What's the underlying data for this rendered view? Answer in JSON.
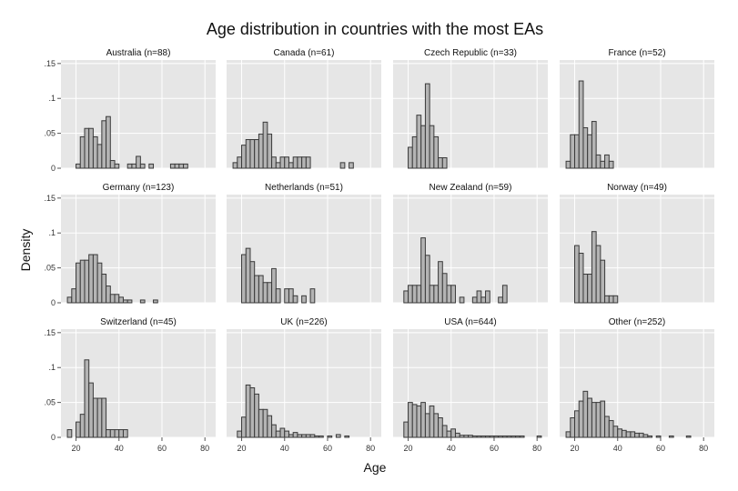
{
  "chart_data": {
    "type": "bar",
    "title": "Age distribution in countries with the most EAs",
    "xlabel": "Age",
    "ylabel": "Density",
    "bin_width": 2,
    "xlim": [
      13,
      85
    ],
    "ylim": [
      0,
      0.155
    ],
    "x_ticks": [
      20,
      40,
      60,
      80
    ],
    "x_tick_labels": [
      "20",
      "40",
      "60",
      "80"
    ],
    "y_ticks": [
      0,
      0.05,
      0.1,
      0.15
    ],
    "y_tick_labels": [
      "0",
      ".05",
      ".1",
      ".15"
    ],
    "grid": true,
    "panels": [
      {
        "label": "Australia (n=88)",
        "x": [
          21,
          23,
          25,
          27,
          29,
          31,
          33,
          35,
          37,
          39,
          45,
          47,
          49,
          51,
          55,
          65,
          67,
          69,
          71
        ],
        "y": [
          0.006,
          0.045,
          0.057,
          0.057,
          0.045,
          0.034,
          0.068,
          0.074,
          0.011,
          0.006,
          0.006,
          0.006,
          0.017,
          0.006,
          0.006,
          0.006,
          0.006,
          0.006,
          0.006
        ]
      },
      {
        "label": "Canada (n=61)",
        "x": [
          17,
          19,
          21,
          23,
          25,
          27,
          29,
          31,
          33,
          35,
          37,
          39,
          41,
          43,
          45,
          47,
          49,
          51,
          67,
          71
        ],
        "y": [
          0.008,
          0.016,
          0.033,
          0.041,
          0.041,
          0.041,
          0.049,
          0.066,
          0.049,
          0.016,
          0.008,
          0.016,
          0.016,
          0.008,
          0.016,
          0.016,
          0.016,
          0.016,
          0.008,
          0.008
        ]
      },
      {
        "label": "Czech Republic (n=33)",
        "x": [
          21,
          23,
          25,
          27,
          29,
          31,
          33,
          35,
          37
        ],
        "y": [
          0.03,
          0.045,
          0.076,
          0.061,
          0.121,
          0.061,
          0.045,
          0.015,
          0.015
        ]
      },
      {
        "label": "France (n=52)",
        "x": [
          17,
          19,
          21,
          23,
          25,
          27,
          29,
          31,
          33,
          35,
          37
        ],
        "y": [
          0.01,
          0.048,
          0.048,
          0.125,
          0.058,
          0.048,
          0.067,
          0.019,
          0.01,
          0.019,
          0.01
        ]
      },
      {
        "label": "Germany (n=123)",
        "x": [
          17,
          19,
          21,
          23,
          25,
          27,
          29,
          31,
          33,
          35,
          37,
          39,
          41,
          43,
          45,
          51,
          57
        ],
        "y": [
          0.008,
          0.02,
          0.057,
          0.061,
          0.061,
          0.069,
          0.069,
          0.057,
          0.041,
          0.024,
          0.012,
          0.012,
          0.008,
          0.004,
          0.004,
          0.004,
          0.004
        ]
      },
      {
        "label": "Netherlands (n=51)",
        "x": [
          21,
          23,
          25,
          27,
          29,
          31,
          33,
          35,
          37,
          41,
          43,
          45,
          49,
          53
        ],
        "y": [
          0.069,
          0.078,
          0.059,
          0.039,
          0.039,
          0.029,
          0.029,
          0.049,
          0.02,
          0.02,
          0.02,
          0.01,
          0.01,
          0.02
        ]
      },
      {
        "label": "New Zealand (n=59)",
        "x": [
          19,
          21,
          23,
          25,
          27,
          29,
          31,
          33,
          35,
          37,
          39,
          41,
          45,
          51,
          53,
          55,
          57,
          63,
          65
        ],
        "y": [
          0.017,
          0.025,
          0.025,
          0.025,
          0.093,
          0.068,
          0.025,
          0.025,
          0.059,
          0.042,
          0.025,
          0.025,
          0.008,
          0.008,
          0.017,
          0.008,
          0.017,
          0.008,
          0.025
        ]
      },
      {
        "label": "Norway (n=49)",
        "x": [
          21,
          23,
          25,
          27,
          29,
          31,
          33,
          35,
          37,
          39
        ],
        "y": [
          0.082,
          0.071,
          0.041,
          0.041,
          0.102,
          0.082,
          0.061,
          0.01,
          0.01,
          0.01
        ]
      },
      {
        "label": "Switzerland (n=45)",
        "x": [
          17,
          21,
          23,
          25,
          27,
          29,
          31,
          33,
          35,
          37,
          39,
          41,
          43
        ],
        "y": [
          0.011,
          0.022,
          0.033,
          0.111,
          0.078,
          0.056,
          0.056,
          0.056,
          0.011,
          0.011,
          0.011,
          0.011,
          0.011
        ]
      },
      {
        "label": "UK (n=226)",
        "x": [
          19,
          21,
          23,
          25,
          27,
          29,
          31,
          33,
          35,
          37,
          39,
          41,
          43,
          45,
          47,
          49,
          51,
          53,
          55,
          57,
          61,
          65,
          69
        ],
        "y": [
          0.009,
          0.029,
          0.075,
          0.071,
          0.062,
          0.04,
          0.04,
          0.031,
          0.018,
          0.009,
          0.013,
          0.009,
          0.004,
          0.007,
          0.004,
          0.004,
          0.004,
          0.004,
          0.002,
          0.002,
          0.002,
          0.004,
          0.002
        ]
      },
      {
        "label": "USA (n=644)",
        "x": [
          19,
          21,
          23,
          25,
          27,
          29,
          31,
          33,
          35,
          37,
          39,
          41,
          43,
          45,
          47,
          49,
          51,
          53,
          55,
          57,
          59,
          61,
          63,
          65,
          67,
          69,
          71,
          73,
          81
        ],
        "y": [
          0.022,
          0.05,
          0.047,
          0.045,
          0.05,
          0.034,
          0.045,
          0.034,
          0.028,
          0.017,
          0.009,
          0.012,
          0.006,
          0.003,
          0.003,
          0.003,
          0.002,
          0.002,
          0.002,
          0.002,
          0.002,
          0.002,
          0.002,
          0.002,
          0.002,
          0.002,
          0.002,
          0.002,
          0.002
        ]
      },
      {
        "label": "Other (n=252)",
        "x": [
          17,
          19,
          21,
          23,
          25,
          27,
          29,
          31,
          33,
          35,
          37,
          39,
          41,
          43,
          45,
          47,
          49,
          51,
          53,
          55,
          59,
          65,
          73
        ],
        "y": [
          0.008,
          0.028,
          0.038,
          0.052,
          0.066,
          0.056,
          0.05,
          0.05,
          0.052,
          0.03,
          0.024,
          0.016,
          0.012,
          0.01,
          0.008,
          0.008,
          0.006,
          0.006,
          0.004,
          0.002,
          0.002,
          0.002,
          0.002
        ]
      }
    ]
  }
}
